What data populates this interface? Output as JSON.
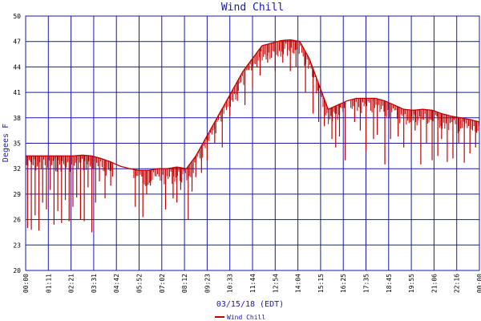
{
  "chart_data": {
    "type": "line",
    "title": "Wind Chill",
    "xlabel": "03/15/18 (EDT)",
    "ylabel": "Degees F",
    "ylim": [
      20,
      50
    ],
    "yticks": [
      20,
      23,
      26,
      29,
      32,
      35,
      38,
      41,
      44,
      47,
      50
    ],
    "xticks": [
      "00:00",
      "01:11",
      "02:21",
      "03:31",
      "04:42",
      "05:52",
      "07:02",
      "08:12",
      "09:23",
      "10:33",
      "11:44",
      "12:54",
      "14:04",
      "15:15",
      "16:25",
      "17:35",
      "18:45",
      "19:55",
      "21:06",
      "22:16",
      "00:00"
    ],
    "grid": true,
    "legend_position": "bottom-center",
    "series": [
      {
        "name": "Wind Chill",
        "color": "#c00000",
        "x_hours": [
          0,
          0.5,
          1.0,
          1.5,
          2.0,
          2.5,
          3.0,
          3.5,
          4.0,
          4.5,
          5.0,
          5.5,
          6.0,
          6.5,
          7.0,
          7.5,
          8.0,
          8.5,
          9.0,
          9.5,
          10.0,
          10.5,
          11.0,
          11.5,
          12.0,
          12.5,
          13.0,
          13.5,
          14.0,
          14.5,
          15.0,
          15.5,
          16.0,
          16.5,
          17.0,
          17.5,
          18.0,
          18.5,
          19.0,
          19.5,
          20.0,
          20.5,
          21.0,
          21.5,
          22.0,
          22.5,
          23.0,
          23.5,
          24.0
        ],
        "envelope": [
          33.5,
          33.5,
          33.5,
          33.5,
          33.5,
          33.5,
          33.6,
          33.5,
          33.2,
          32.8,
          32.3,
          32.0,
          31.8,
          31.8,
          32.0,
          32.0,
          32.2,
          32.0,
          33.5,
          35.5,
          37.5,
          39.5,
          41.5,
          43.5,
          45.0,
          46.5,
          46.8,
          47.1,
          47.2,
          47.0,
          45.0,
          42.0,
          39.0,
          39.5,
          40.0,
          40.3,
          40.3,
          40.3,
          40.0,
          39.5,
          39.0,
          38.9,
          39.0,
          38.9,
          38.5,
          38.2,
          38.0,
          37.8,
          37.5
        ],
        "dips": [
          [
            0.1,
            25.0
          ],
          [
            0.3,
            24.8
          ],
          [
            0.5,
            26.5
          ],
          [
            0.7,
            24.7
          ],
          [
            0.9,
            28.0
          ],
          [
            1.1,
            27.2
          ],
          [
            1.3,
            29.5
          ],
          [
            1.5,
            25.4
          ],
          [
            1.7,
            27.0
          ],
          [
            1.9,
            25.6
          ],
          [
            2.1,
            28.3
          ],
          [
            2.3,
            25.8
          ],
          [
            2.5,
            27.5
          ],
          [
            2.7,
            28.6
          ],
          [
            2.9,
            26.0
          ],
          [
            3.1,
            25.8
          ],
          [
            3.3,
            29.8
          ],
          [
            3.5,
            24.5
          ],
          [
            3.7,
            28.0
          ],
          [
            3.9,
            30.5
          ],
          [
            4.2,
            28.5
          ],
          [
            4.5,
            30.0
          ],
          [
            5.8,
            27.5
          ],
          [
            6.0,
            26.5
          ],
          [
            6.2,
            26.3
          ],
          [
            6.4,
            29.0
          ],
          [
            6.6,
            30.0
          ],
          [
            7.4,
            27.2
          ],
          [
            7.8,
            28.5
          ],
          [
            8.0,
            28.0
          ],
          [
            8.2,
            29.5
          ],
          [
            8.6,
            26.0
          ],
          [
            8.8,
            29.3
          ],
          [
            9.0,
            31.0
          ],
          [
            9.3,
            31.5
          ],
          [
            9.6,
            33.0
          ],
          [
            10.0,
            35.0
          ],
          [
            10.4,
            34.5
          ],
          [
            10.8,
            38.2
          ],
          [
            11.2,
            40.0
          ],
          [
            11.6,
            39.5
          ],
          [
            12.0,
            41.5
          ],
          [
            12.4,
            43.0
          ],
          [
            12.8,
            44.5
          ],
          [
            13.2,
            43.5
          ],
          [
            13.6,
            44.5
          ],
          [
            14.0,
            43.5
          ],
          [
            14.3,
            44.0
          ],
          [
            14.8,
            41.0
          ],
          [
            15.2,
            38.5
          ],
          [
            15.5,
            37.5
          ],
          [
            15.8,
            37.0
          ],
          [
            16.2,
            35.5
          ],
          [
            16.4,
            34.5
          ],
          [
            16.6,
            35.8
          ],
          [
            16.9,
            33.0
          ],
          [
            17.4,
            37.5
          ],
          [
            17.7,
            36.5
          ],
          [
            18.0,
            34.0
          ],
          [
            18.4,
            35.5
          ],
          [
            18.6,
            36.0
          ],
          [
            19.0,
            32.5
          ],
          [
            19.3,
            35.5
          ],
          [
            19.7,
            35.8
          ],
          [
            20.0,
            34.5
          ],
          [
            20.4,
            35.0
          ],
          [
            20.6,
            36.5
          ],
          [
            20.9,
            32.5
          ],
          [
            21.2,
            35.0
          ],
          [
            21.5,
            33.0
          ],
          [
            21.8,
            33.5
          ],
          [
            22.0,
            35.5
          ],
          [
            22.3,
            32.8
          ],
          [
            22.6,
            33.2
          ],
          [
            22.9,
            35.0
          ],
          [
            23.2,
            32.7
          ],
          [
            23.5,
            33.8
          ],
          [
            23.8,
            34.5
          ]
        ]
      }
    ]
  }
}
